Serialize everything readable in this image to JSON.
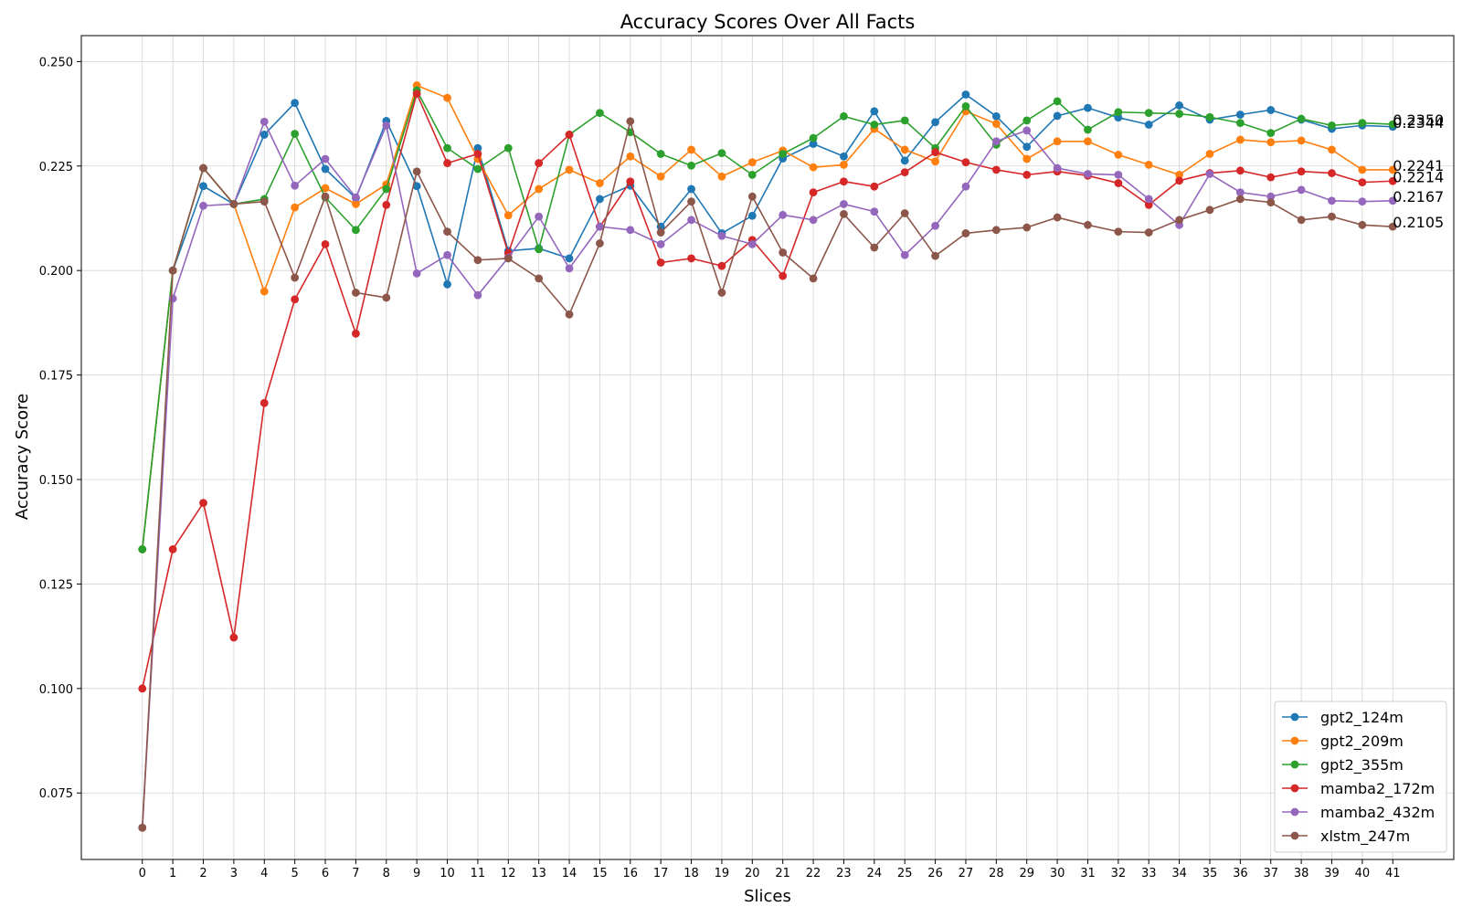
{
  "chart_data": {
    "type": "line",
    "title": "Accuracy Scores Over All Facts",
    "xlabel": "Slices",
    "ylabel": "Accuracy Score",
    "x": [
      0,
      1,
      2,
      3,
      4,
      5,
      6,
      7,
      8,
      9,
      10,
      11,
      12,
      13,
      14,
      15,
      16,
      17,
      18,
      19,
      20,
      21,
      22,
      23,
      24,
      25,
      26,
      27,
      28,
      29,
      30,
      31,
      32,
      33,
      34,
      35,
      36,
      37,
      38,
      39,
      40,
      41
    ],
    "xlim": [
      -2,
      43
    ],
    "ylim": [
      0.0591,
      0.2562
    ],
    "yticks": [
      0.075,
      0.1,
      0.125,
      0.15,
      0.175,
      0.2,
      0.225,
      0.25
    ],
    "ytick_labels": [
      "0.075",
      "0.100",
      "0.125",
      "0.150",
      "0.175",
      "0.200",
      "0.225",
      "0.250"
    ],
    "grid": true,
    "legend_position": "lower-right",
    "series": [
      {
        "name": "gpt2_124m",
        "color": "#1f77b4",
        "values": [
          0.1333,
          0.2,
          0.2202,
          0.2159,
          0.2325,
          0.2401,
          0.2243,
          0.2173,
          0.2358,
          0.2202,
          0.1967,
          0.2293,
          0.2047,
          0.2053,
          0.2029,
          0.2171,
          0.2203,
          0.2105,
          0.2195,
          0.2089,
          0.2131,
          0.2268,
          0.2303,
          0.2273,
          0.2381,
          0.2263,
          0.2355,
          0.2421,
          0.2369,
          0.2296,
          0.237,
          0.2389,
          0.2366,
          0.2349,
          0.2395,
          0.2361,
          0.2373,
          0.2384,
          0.2361,
          0.2339,
          0.2347,
          0.2344
        ],
        "end_label": "0.2344"
      },
      {
        "name": "gpt2_209m",
        "color": "#ff7f0e",
        "values": [
          0.1333,
          0.2,
          0.2245,
          0.2159,
          0.195,
          0.2151,
          0.2197,
          0.2159,
          0.2206,
          0.2443,
          0.2413,
          0.2267,
          0.2132,
          0.2195,
          0.2241,
          0.2209,
          0.2273,
          0.2225,
          0.2289,
          0.2225,
          0.2259,
          0.2287,
          0.2247,
          0.2253,
          0.2339,
          0.2289,
          0.2261,
          0.2381,
          0.2351,
          0.2267,
          0.2309,
          0.2309,
          0.2277,
          0.2253,
          0.2229,
          0.2279,
          0.2313,
          0.2307,
          0.2311,
          0.2289,
          0.2241,
          0.2241
        ],
        "end_label": "0.2241"
      },
      {
        "name": "gpt2_355m",
        "color": "#2ca02c",
        "values": [
          0.1333,
          0.2,
          0.2245,
          0.2159,
          0.2171,
          0.2327,
          0.2175,
          0.2097,
          0.2195,
          0.2431,
          0.2293,
          0.2243,
          0.2293,
          0.2051,
          0.2325,
          0.2377,
          0.2331,
          0.2279,
          0.2251,
          0.2281,
          0.2229,
          0.2279,
          0.2317,
          0.2369,
          0.2349,
          0.2359,
          0.2293,
          0.2393,
          0.2301,
          0.2359,
          0.2405,
          0.2337,
          0.2379,
          0.2377,
          0.2375,
          0.2367,
          0.2353,
          0.2329,
          0.2363,
          0.2347,
          0.2353,
          0.235
        ],
        "end_label": "0.2350"
      },
      {
        "name": "mamba2_172m",
        "color": "#d62728",
        "values": [
          0.1,
          0.1333,
          0.1444,
          0.1122,
          0.1683,
          0.1931,
          0.2063,
          0.1849,
          0.2157,
          0.2423,
          0.2257,
          0.2279,
          0.2041,
          0.2257,
          0.2325,
          0.2105,
          0.2213,
          0.2019,
          0.2029,
          0.2011,
          0.2073,
          0.1987,
          0.2187,
          0.2213,
          0.2201,
          0.2235,
          0.2283,
          0.2259,
          0.2241,
          0.2229,
          0.2237,
          0.2227,
          0.2209,
          0.2157,
          0.2215,
          0.2233,
          0.2239,
          0.2223,
          0.2237,
          0.2233,
          0.2211,
          0.2214
        ],
        "end_label": "0.2214"
      },
      {
        "name": "mamba2_432m",
        "color": "#9467bd",
        "values": [
          0.0667,
          0.1933,
          0.2155,
          0.2159,
          0.2356,
          0.2203,
          0.2267,
          0.2175,
          0.2347,
          0.1993,
          0.2037,
          0.1941,
          0.2031,
          0.2129,
          0.2005,
          0.2105,
          0.2097,
          0.2063,
          0.2121,
          0.2083,
          0.2063,
          0.2133,
          0.2121,
          0.2159,
          0.2141,
          0.2037,
          0.2107,
          0.2201,
          0.2309,
          0.2335,
          0.2245,
          0.2231,
          0.2229,
          0.2171,
          0.2109,
          0.2231,
          0.2187,
          0.2177,
          0.2193,
          0.2167,
          0.2165,
          0.2167
        ],
        "end_label": "0.2167"
      },
      {
        "name": "xlstm_247m",
        "color": "#8c564b",
        "values": [
          0.0667,
          0.2,
          0.2245,
          0.2159,
          0.2165,
          0.1983,
          0.2177,
          0.1947,
          0.1935,
          0.2237,
          0.2093,
          0.2025,
          0.2029,
          0.1981,
          0.1895,
          0.2065,
          0.2357,
          0.2091,
          0.2165,
          0.1947,
          0.2177,
          0.2043,
          0.1981,
          0.2135,
          0.2055,
          0.2137,
          0.2035,
          0.2089,
          0.2097,
          0.2103,
          0.2127,
          0.2109,
          0.2093,
          0.2091,
          0.2121,
          0.2145,
          0.2171,
          0.2163,
          0.2121,
          0.2129,
          0.2109,
          0.2105
        ],
        "end_label": "0.2105"
      }
    ]
  }
}
